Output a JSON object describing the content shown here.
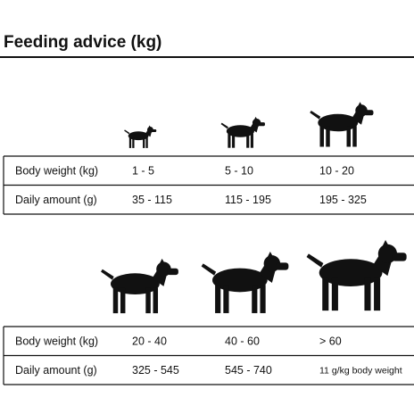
{
  "title": "Feeding advice (kg)",
  "tables": [
    {
      "rows": [
        [
          "Body weight (kg)",
          "1 - 5",
          "5 - 10",
          "10 - 20"
        ],
        [
          "Daily amount (g)",
          "35 - 115",
          "115 - 195",
          "195 - 325"
        ]
      ]
    },
    {
      "rows": [
        [
          "Body weight (kg)",
          "20 - 40",
          "40 - 60",
          "> 60"
        ],
        [
          "Daily amount (g)",
          "325 - 545",
          "545 - 740",
          "11 g/kg body weight"
        ]
      ]
    }
  ]
}
